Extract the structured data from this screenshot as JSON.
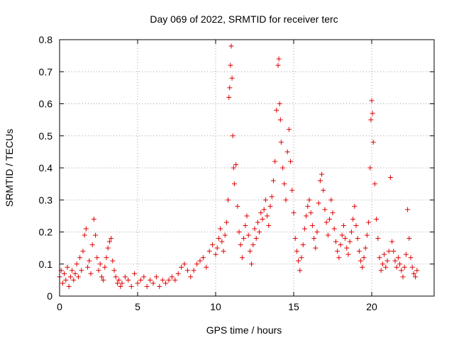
{
  "chart_data": {
    "type": "scatter",
    "title": "Day 069 of 2022, SRMTID for receiver terc",
    "xlabel": "GPS time / hours",
    "ylabel": "SRMTID / TECUs",
    "xlim": [
      0,
      24
    ],
    "ylim": [
      0,
      0.8
    ],
    "xticks": [
      "0",
      "5",
      "10",
      "15",
      "20"
    ],
    "xtick_values": [
      0,
      5,
      10,
      15,
      20
    ],
    "yticks": [
      "0",
      "0.1",
      "0.2",
      "0.3",
      "0.4",
      "0.5",
      "0.6",
      "0.7",
      "0.8"
    ],
    "ytick_values": [
      0,
      0.1,
      0.2,
      0.3,
      0.4,
      0.5,
      0.6,
      0.7,
      0.8
    ],
    "grid": true,
    "marker": "+",
    "marker_color": "#e00000",
    "series": [
      {
        "name": "SRMTID",
        "points": [
          [
            0.0,
            0.06
          ],
          [
            0.1,
            0.08
          ],
          [
            0.2,
            0.04
          ],
          [
            0.3,
            0.07
          ],
          [
            0.4,
            0.05
          ],
          [
            0.5,
            0.09
          ],
          [
            0.6,
            0.03
          ],
          [
            0.7,
            0.06
          ],
          [
            0.8,
            0.08
          ],
          [
            0.9,
            0.05
          ],
          [
            1.0,
            0.07
          ],
          [
            1.1,
            0.1
          ],
          [
            1.2,
            0.06
          ],
          [
            1.3,
            0.12
          ],
          [
            1.4,
            0.08
          ],
          [
            1.5,
            0.14
          ],
          [
            1.6,
            0.19
          ],
          [
            1.7,
            0.21
          ],
          [
            1.8,
            0.09
          ],
          [
            1.9,
            0.11
          ],
          [
            2.0,
            0.07
          ],
          [
            2.1,
            0.16
          ],
          [
            2.2,
            0.24
          ],
          [
            2.3,
            0.19
          ],
          [
            2.4,
            0.12
          ],
          [
            2.5,
            0.08
          ],
          [
            2.6,
            0.1
          ],
          [
            2.7,
            0.06
          ],
          [
            2.8,
            0.05
          ],
          [
            2.9,
            0.09
          ],
          [
            3.0,
            0.12
          ],
          [
            3.1,
            0.15
          ],
          [
            3.2,
            0.17
          ],
          [
            3.3,
            0.18
          ],
          [
            3.4,
            0.11
          ],
          [
            3.5,
            0.08
          ],
          [
            3.6,
            0.06
          ],
          [
            3.7,
            0.04
          ],
          [
            3.8,
            0.05
          ],
          [
            3.9,
            0.03
          ],
          [
            4.0,
            0.04
          ],
          [
            4.2,
            0.06
          ],
          [
            4.4,
            0.05
          ],
          [
            4.6,
            0.03
          ],
          [
            4.8,
            0.07
          ],
          [
            5.0,
            0.04
          ],
          [
            5.2,
            0.05
          ],
          [
            5.4,
            0.06
          ],
          [
            5.6,
            0.03
          ],
          [
            5.8,
            0.05
          ],
          [
            6.0,
            0.04
          ],
          [
            6.2,
            0.06
          ],
          [
            6.4,
            0.03
          ],
          [
            6.6,
            0.05
          ],
          [
            6.8,
            0.04
          ],
          [
            7.0,
            0.05
          ],
          [
            7.2,
            0.06
          ],
          [
            7.4,
            0.05
          ],
          [
            7.6,
            0.07
          ],
          [
            7.8,
            0.09
          ],
          [
            8.0,
            0.1
          ],
          [
            8.2,
            0.08
          ],
          [
            8.4,
            0.06
          ],
          [
            8.6,
            0.08
          ],
          [
            8.8,
            0.1
          ],
          [
            9.0,
            0.11
          ],
          [
            9.2,
            0.12
          ],
          [
            9.4,
            0.09
          ],
          [
            9.6,
            0.14
          ],
          [
            9.8,
            0.16
          ],
          [
            10.0,
            0.13
          ],
          [
            10.1,
            0.15
          ],
          [
            10.2,
            0.18
          ],
          [
            10.3,
            0.21
          ],
          [
            10.4,
            0.17
          ],
          [
            10.5,
            0.14
          ],
          [
            10.6,
            0.19
          ],
          [
            10.7,
            0.23
          ],
          [
            10.8,
            0.3
          ],
          [
            10.85,
            0.62
          ],
          [
            10.9,
            0.65
          ],
          [
            10.95,
            0.72
          ],
          [
            11.0,
            0.78
          ],
          [
            11.05,
            0.68
          ],
          [
            11.1,
            0.5
          ],
          [
            11.15,
            0.4
          ],
          [
            11.2,
            0.35
          ],
          [
            11.3,
            0.41
          ],
          [
            11.4,
            0.28
          ],
          [
            11.5,
            0.2
          ],
          [
            11.6,
            0.16
          ],
          [
            11.7,
            0.12
          ],
          [
            11.8,
            0.18
          ],
          [
            11.9,
            0.22
          ],
          [
            12.0,
            0.25
          ],
          [
            12.1,
            0.19
          ],
          [
            12.2,
            0.14
          ],
          [
            12.3,
            0.1
          ],
          [
            12.4,
            0.16
          ],
          [
            12.5,
            0.21
          ],
          [
            12.6,
            0.18
          ],
          [
            12.7,
            0.23
          ],
          [
            12.8,
            0.2
          ],
          [
            12.9,
            0.26
          ],
          [
            13.0,
            0.24
          ],
          [
            13.1,
            0.27
          ],
          [
            13.2,
            0.3
          ],
          [
            13.3,
            0.25
          ],
          [
            13.4,
            0.22
          ],
          [
            13.5,
            0.28
          ],
          [
            13.6,
            0.31
          ],
          [
            13.7,
            0.36
          ],
          [
            13.8,
            0.42
          ],
          [
            13.9,
            0.58
          ],
          [
            14.0,
            0.72
          ],
          [
            14.05,
            0.74
          ],
          [
            14.1,
            0.6
          ],
          [
            14.15,
            0.55
          ],
          [
            14.2,
            0.48
          ],
          [
            14.3,
            0.4
          ],
          [
            14.4,
            0.35
          ],
          [
            14.5,
            0.3
          ],
          [
            14.6,
            0.45
          ],
          [
            14.7,
            0.52
          ],
          [
            14.8,
            0.42
          ],
          [
            14.9,
            0.33
          ],
          [
            15.0,
            0.26
          ],
          [
            15.1,
            0.18
          ],
          [
            15.2,
            0.14
          ],
          [
            15.3,
            0.11
          ],
          [
            15.4,
            0.08
          ],
          [
            15.5,
            0.12
          ],
          [
            15.6,
            0.16
          ],
          [
            15.7,
            0.21
          ],
          [
            15.8,
            0.25
          ],
          [
            15.9,
            0.28
          ],
          [
            16.0,
            0.3
          ],
          [
            16.1,
            0.26
          ],
          [
            16.2,
            0.22
          ],
          [
            16.3,
            0.18
          ],
          [
            16.4,
            0.15
          ],
          [
            16.5,
            0.2
          ],
          [
            16.6,
            0.29
          ],
          [
            16.7,
            0.36
          ],
          [
            16.8,
            0.38
          ],
          [
            16.9,
            0.33
          ],
          [
            17.0,
            0.27
          ],
          [
            17.1,
            0.23
          ],
          [
            17.2,
            0.19
          ],
          [
            17.3,
            0.24
          ],
          [
            17.4,
            0.3
          ],
          [
            17.5,
            0.26
          ],
          [
            17.6,
            0.21
          ],
          [
            17.7,
            0.17
          ],
          [
            17.8,
            0.14
          ],
          [
            17.9,
            0.12
          ],
          [
            18.0,
            0.16
          ],
          [
            18.1,
            0.19
          ],
          [
            18.2,
            0.22
          ],
          [
            18.3,
            0.18
          ],
          [
            18.4,
            0.15
          ],
          [
            18.5,
            0.13
          ],
          [
            18.6,
            0.17
          ],
          [
            18.7,
            0.2
          ],
          [
            18.8,
            0.24
          ],
          [
            18.9,
            0.28
          ],
          [
            19.0,
            0.22
          ],
          [
            19.1,
            0.18
          ],
          [
            19.2,
            0.14
          ],
          [
            19.3,
            0.11
          ],
          [
            19.4,
            0.09
          ],
          [
            19.5,
            0.12
          ],
          [
            19.6,
            0.15
          ],
          [
            19.7,
            0.19
          ],
          [
            19.8,
            0.23
          ],
          [
            19.9,
            0.4
          ],
          [
            19.95,
            0.55
          ],
          [
            20.0,
            0.61
          ],
          [
            20.05,
            0.57
          ],
          [
            20.1,
            0.48
          ],
          [
            20.2,
            0.35
          ],
          [
            20.3,
            0.24
          ],
          [
            20.4,
            0.18
          ],
          [
            20.5,
            0.12
          ],
          [
            20.6,
            0.08
          ],
          [
            20.7,
            0.1
          ],
          [
            20.8,
            0.13
          ],
          [
            20.9,
            0.09
          ],
          [
            21.0,
            0.11
          ],
          [
            21.1,
            0.14
          ],
          [
            21.2,
            0.37
          ],
          [
            21.3,
            0.17
          ],
          [
            21.4,
            0.14
          ],
          [
            21.5,
            0.11
          ],
          [
            21.6,
            0.09
          ],
          [
            21.7,
            0.12
          ],
          [
            21.8,
            0.1
          ],
          [
            21.9,
            0.08
          ],
          [
            22.0,
            0.06
          ],
          [
            22.1,
            0.09
          ],
          [
            22.2,
            0.13
          ],
          [
            22.3,
            0.27
          ],
          [
            22.4,
            0.18
          ],
          [
            22.5,
            0.12
          ],
          [
            22.6,
            0.09
          ],
          [
            22.7,
            0.07
          ],
          [
            22.8,
            0.06
          ],
          [
            22.9,
            0.08
          ]
        ]
      }
    ]
  }
}
